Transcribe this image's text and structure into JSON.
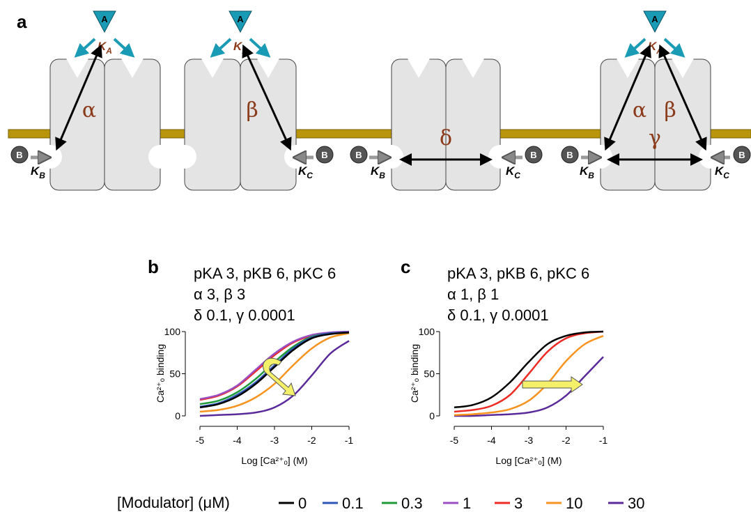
{
  "diagram": {
    "panel_label": "a",
    "ligand_a": "A",
    "ligand_b": "B",
    "k_symbol": "K",
    "k_subscripts": [
      "A",
      "B",
      "C"
    ],
    "alpha": "α",
    "beta": "β",
    "delta": "δ",
    "gamma": "γ"
  },
  "chart_data": [
    {
      "type": "line",
      "panel_label": "b",
      "annotations": [
        "pKA 3, pKB 6, pKC 6",
        "α 3, β 3",
        "δ 0.1, γ 0.0001"
      ],
      "x_label": "Log [Ca²⁺ₒ] (M)",
      "y_label": "Ca²⁺ₒ binding",
      "legend_title": "[Modulator] (μM)",
      "x": [
        -5,
        -4.5,
        -4,
        -3.5,
        -3,
        -2.5,
        -2,
        -1.5,
        -1
      ],
      "series": [
        {
          "name": "0",
          "color": "#000000",
          "values": [
            10,
            14,
            23,
            38,
            58,
            78,
            92,
            97,
            99
          ]
        },
        {
          "name": "0.1",
          "color": "#2e55b8",
          "values": [
            11,
            15,
            25,
            40,
            60,
            80,
            93,
            98,
            99
          ]
        },
        {
          "name": "0.3",
          "color": "#1f9a3a",
          "values": [
            14,
            18,
            28,
            44,
            64,
            82,
            94,
            98,
            99
          ]
        },
        {
          "name": "1",
          "color": "#9b4fc4",
          "values": [
            20,
            25,
            36,
            55,
            74,
            88,
            96,
            99,
            100
          ]
        },
        {
          "name": "3",
          "color": "#ee2a24",
          "values": [
            19,
            24,
            35,
            53,
            72,
            87,
            95,
            98,
            99
          ]
        },
        {
          "name": "10",
          "color": "#f7931e",
          "values": [
            5,
            7,
            12,
            22,
            38,
            60,
            80,
            93,
            98
          ]
        },
        {
          "name": "30",
          "color": "#5b2a9a",
          "values": [
            0,
            1,
            2,
            4,
            10,
            24,
            48,
            74,
            89
          ]
        }
      ],
      "xlim": [
        -5,
        -1
      ],
      "xticks": [
        -5,
        -4,
        -3,
        -2,
        -1
      ],
      "ylim": [
        0,
        100
      ],
      "yticks": [
        0,
        50,
        100
      ]
    },
    {
      "type": "line",
      "panel_label": "c",
      "annotations": [
        "pKA 3, pKB 6, pKC 6",
        "α 1, β 1",
        "δ 0.1, γ 0.0001"
      ],
      "x_label": "Log [Ca²⁺ₒ] (M)",
      "y_label": "Ca²⁺ₒ binding",
      "x": [
        -5,
        -4.5,
        -4,
        -3.5,
        -3,
        -2.5,
        -2,
        -1.5,
        -1
      ],
      "series": [
        {
          "name": "0",
          "color": "#000000",
          "values": [
            10,
            13,
            22,
            40,
            64,
            85,
            95,
            99,
            100
          ]
        },
        {
          "name": "3",
          "color": "#ee2a24",
          "values": [
            5,
            7,
            12,
            25,
            50,
            76,
            92,
            98,
            100
          ]
        },
        {
          "name": "10",
          "color": "#f7931e",
          "values": [
            1,
            2,
            4,
            8,
            18,
            38,
            65,
            85,
            95
          ]
        },
        {
          "name": "30",
          "color": "#5b2a9a",
          "values": [
            0,
            0,
            1,
            2,
            4,
            10,
            24,
            47,
            70
          ]
        }
      ],
      "xlim": [
        -5,
        -1
      ],
      "xticks": [
        -5,
        -4,
        -3,
        -2,
        -1
      ],
      "ylim": [
        0,
        100
      ],
      "yticks": [
        0,
        50,
        100
      ]
    }
  ]
}
